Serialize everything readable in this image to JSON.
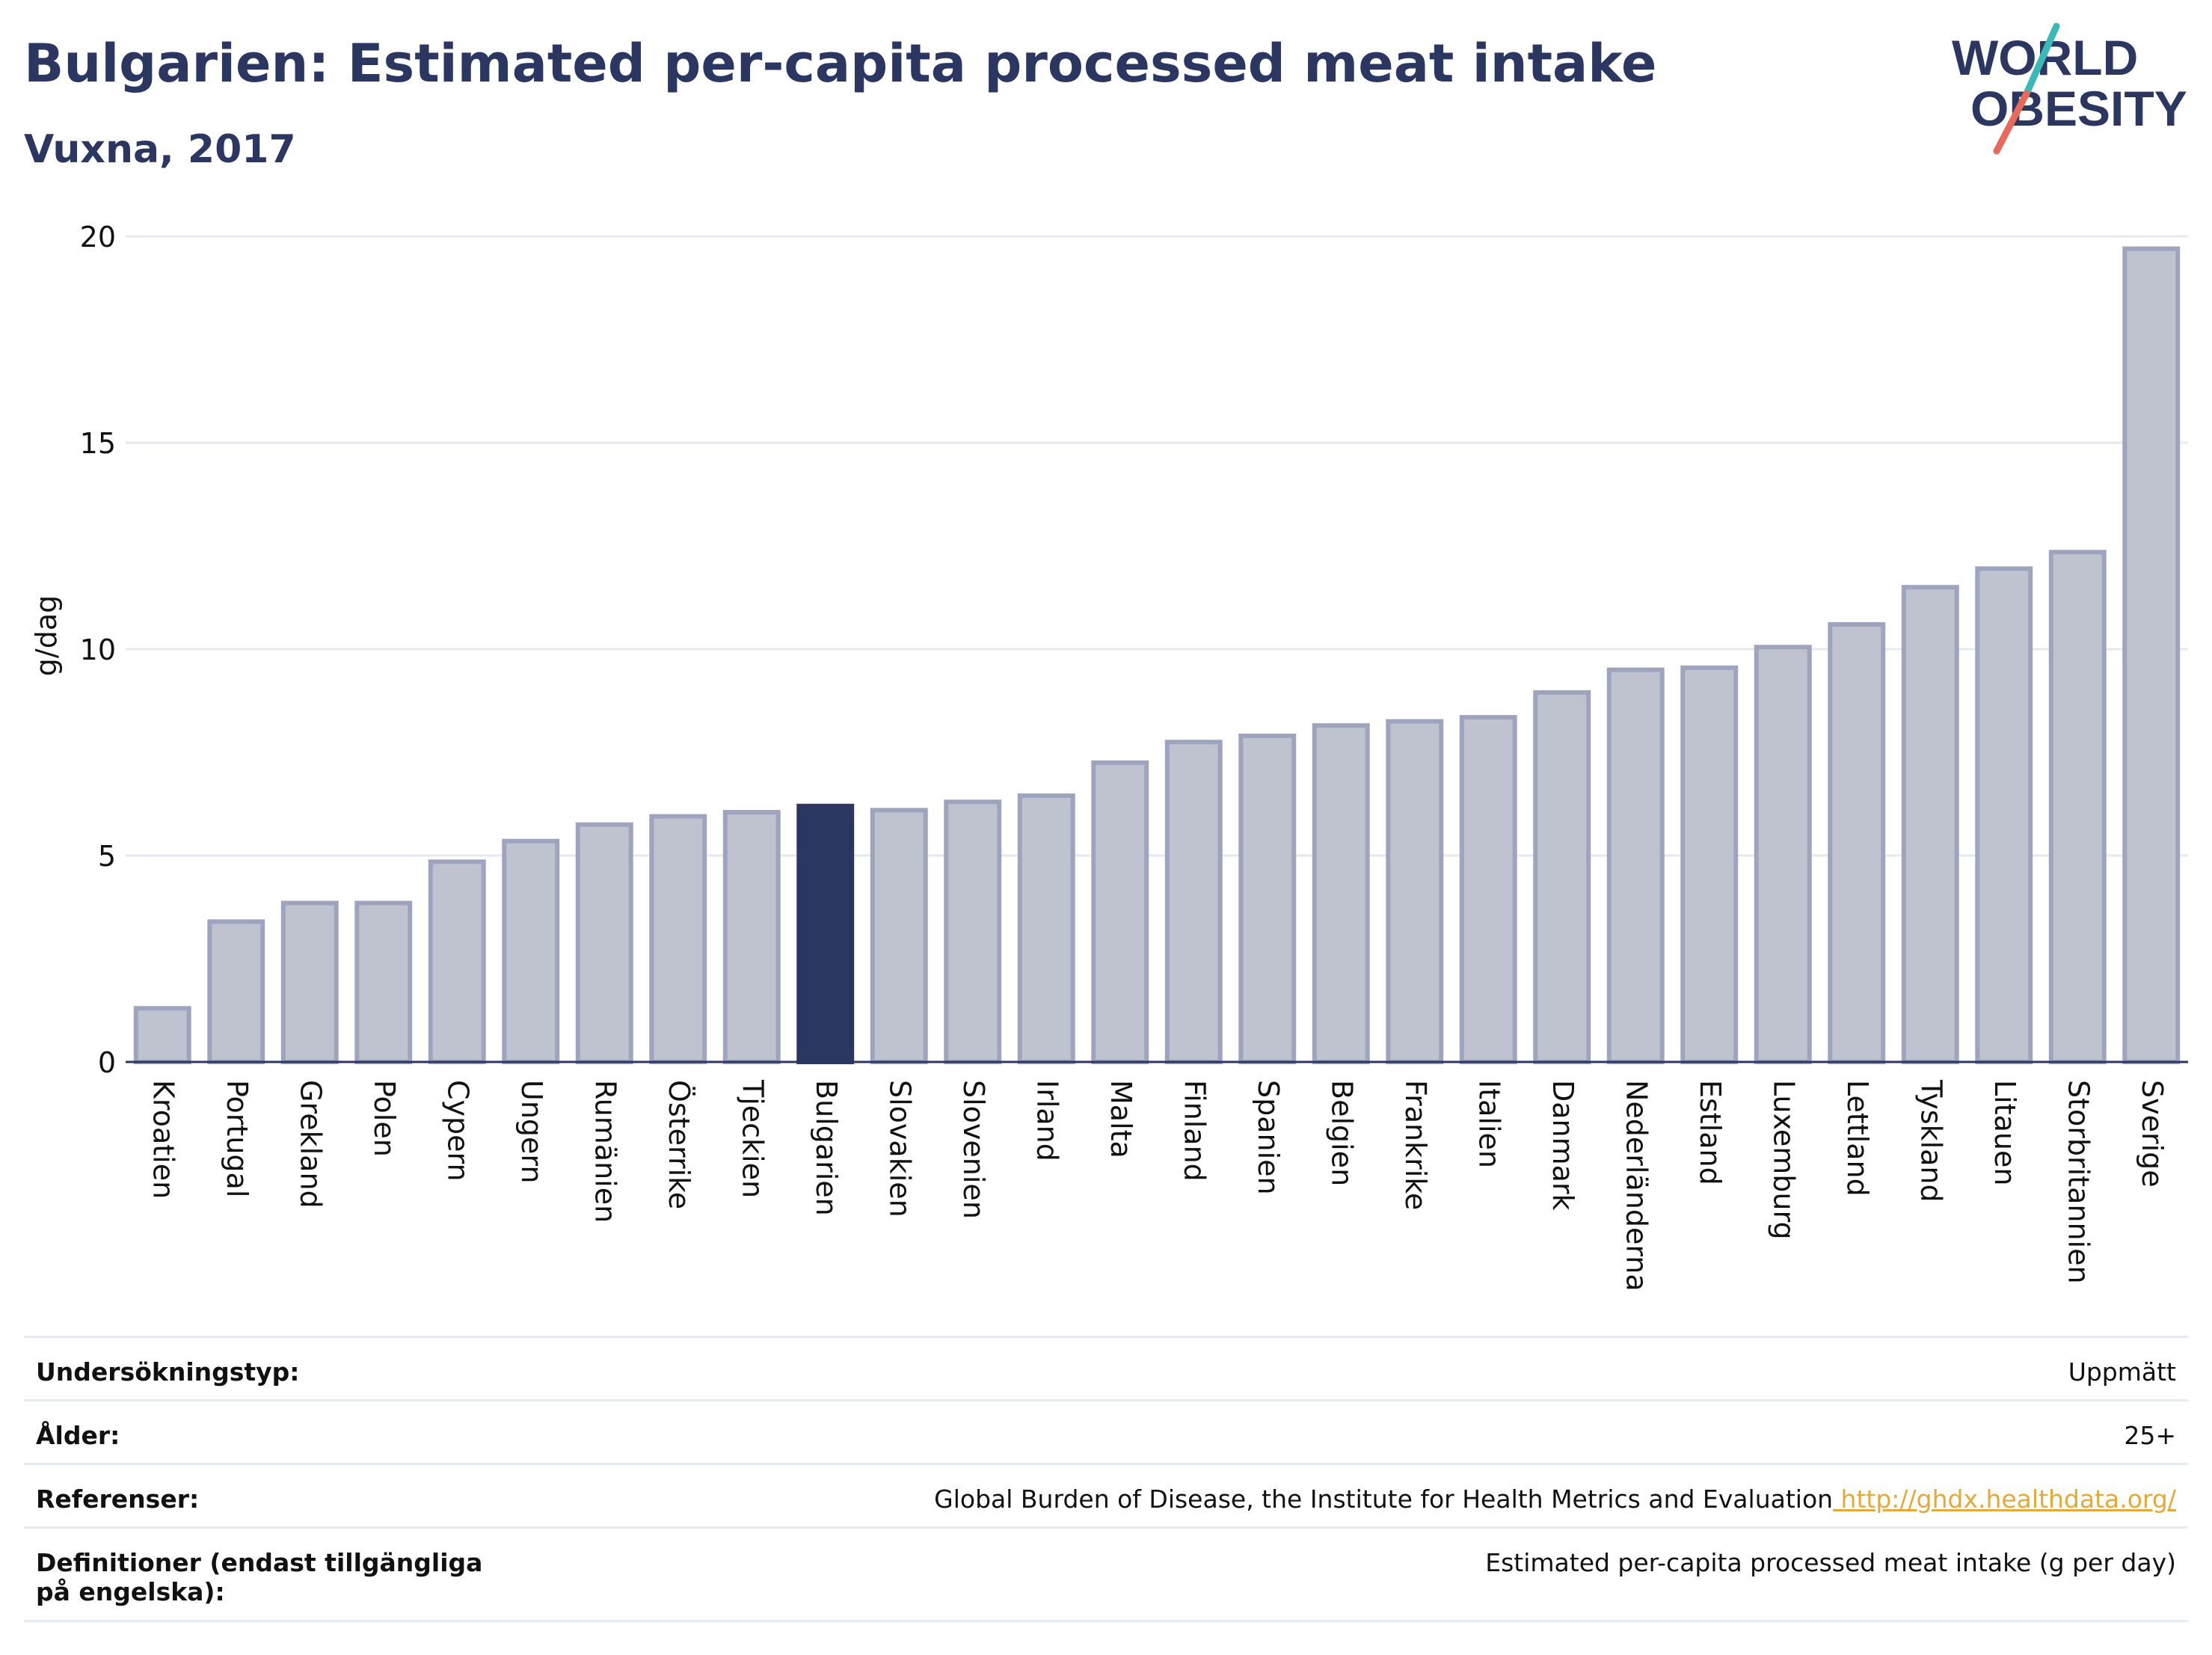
{
  "header": {
    "title": "Bulgarien: Estimated per-capita processed meat intake",
    "subtitle": "Vuxna, 2017"
  },
  "logo": {
    "line1": "WORLD",
    "line2": "OBESITY",
    "colors": {
      "text": "#2b3661",
      "slash_top": "#3cb8b8",
      "slash_bottom": "#e86a5c"
    }
  },
  "colors": {
    "bar_fill": "#bfc3d0",
    "bar_stroke": "#9ea4bd",
    "highlight": "#2b3661",
    "grid": "#e6eaef",
    "axis_text": "#111111"
  },
  "chart_data": {
    "type": "bar",
    "ylabel": "g/dag",
    "ylim": [
      0,
      20
    ],
    "yticks": [
      0,
      5,
      10,
      15,
      20
    ],
    "grid": true,
    "highlight": "Bulgarien",
    "categories": [
      "Kroatien",
      "Portugal",
      "Grekland",
      "Polen",
      "Cypern",
      "Ungern",
      "Rumänien",
      "Österrike",
      "Tjeckien",
      "Bulgarien",
      "Slovakien",
      "Slovenien",
      "Irland",
      "Malta",
      "Finland",
      "Spanien",
      "Belgien",
      "Frankrike",
      "Italien",
      "Danmark",
      "Nederländerna",
      "Estland",
      "Luxemburg",
      "Lettland",
      "Tyskland",
      "Litauen",
      "Storbritannien",
      "Sverige"
    ],
    "values": [
      1.3,
      3.4,
      3.85,
      3.85,
      4.85,
      5.35,
      5.75,
      5.95,
      6.05,
      6.2,
      6.1,
      6.3,
      6.45,
      7.25,
      7.75,
      7.9,
      8.15,
      8.25,
      8.35,
      8.95,
      9.5,
      9.55,
      10.05,
      10.6,
      11.5,
      11.95,
      12.35,
      19.7
    ]
  },
  "info": {
    "rows": [
      {
        "label": "Undersökningstyp:",
        "value": "Uppmätt"
      },
      {
        "label": "Ålder:",
        "value": "25+"
      },
      {
        "label": "Referenser:",
        "value": "Global Burden of Disease, the Institute for Health Metrics and Evaluation",
        "link": "http://ghdx.healthdata.org/"
      },
      {
        "label": "Definitioner (endast tillgängliga på engelska):",
        "value": "Estimated per-capita processed meat intake (g per day)"
      }
    ]
  }
}
